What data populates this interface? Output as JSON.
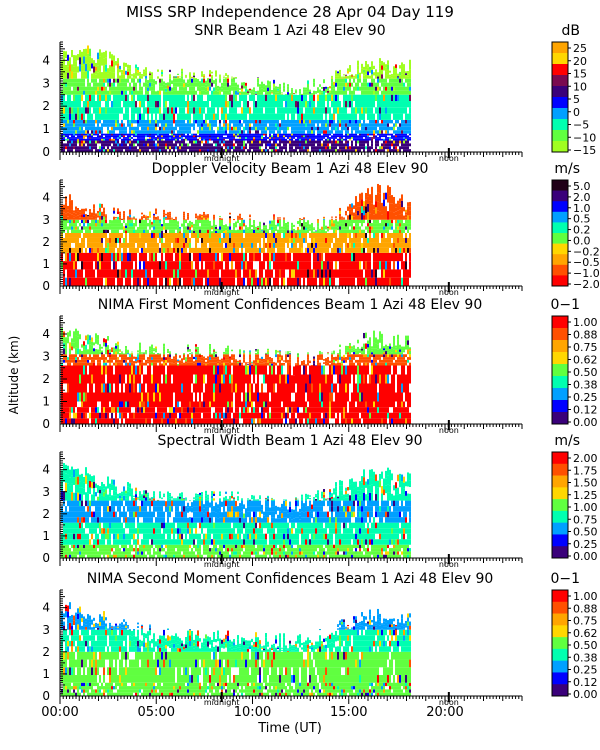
{
  "figure": {
    "title": "MISS SRP Independence  28 Apr 04 Day 119",
    "xlabel": "Time (UT)",
    "ylabel": "Altitude (km)",
    "x_ticks": [
      "00:00",
      "05:00",
      "10:00",
      "15:00",
      "20:00"
    ],
    "midnight_label": "midnight",
    "noon_label": "noon"
  },
  "chart_data": [
    {
      "type": "heatmap",
      "title": "SNR Beam 1 Azi  48 Elev 90",
      "unit": "dB",
      "xlim": [
        0,
        24
      ],
      "ylim": [
        0,
        4.8
      ],
      "y_ticks": [
        0,
        1,
        2,
        3,
        4
      ],
      "colorbar_labels": [
        "25",
        "20",
        "15",
        "10",
        "5",
        "0",
        "−5",
        "−10",
        "−15"
      ],
      "colorbar_colors": [
        "#ffa500",
        "#ffd700",
        "#ff0000",
        "#7a0a50",
        "#3a007a",
        "#0000ff",
        "#00a0ff",
        "#00ffb0",
        "#60ff40",
        "#a0ff20"
      ],
      "data_end_hour": 18.2,
      "top_km": [
        4.3,
        4.4,
        4.2,
        3.9,
        3.5,
        3.4,
        3.3,
        3.4,
        3.3,
        3.0,
        3.0,
        2.9,
        2.8,
        2.8,
        3.2,
        3.6,
        3.8,
        3.8,
        3.7
      ],
      "bands": [
        {
          "max_km": 0.5,
          "color": "#3a007a"
        },
        {
          "max_km": 0.8,
          "color": "#0000ff"
        },
        {
          "max_km": 1.4,
          "color": "#00a0ff"
        },
        {
          "max_km": 2.5,
          "color": "#00ffb0"
        },
        {
          "max_km": 3.2,
          "color": "#60ff40"
        },
        {
          "max_km": 9,
          "color": "#a0ff20"
        }
      ]
    },
    {
      "type": "heatmap",
      "title": "Doppler Velocity Beam 1 Azi  48 Elev 90",
      "unit": "m/s",
      "xlim": [
        0,
        24
      ],
      "ylim": [
        0,
        4.8
      ],
      "y_ticks": [
        0,
        1,
        2,
        3,
        4
      ],
      "colorbar_labels": [
        "5.0",
        "2.0",
        "1.0",
        "0.5",
        "0.2",
        "0.0",
        "−0.2",
        "−0.5",
        "−1.0",
        "−2.0"
      ],
      "colorbar_colors": [
        "#200018",
        "#3a007a",
        "#0000ff",
        "#00a0ff",
        "#00ffb0",
        "#60ff40",
        "#ffd700",
        "#ffa500",
        "#ff5000",
        "#ff0000"
      ],
      "data_end_hour": 18.2,
      "top_km": [
        4.0,
        3.6,
        3.4,
        3.2,
        3.1,
        3.2,
        3.0,
        3.1,
        3.0,
        3.0,
        2.9,
        2.9,
        2.8,
        2.8,
        3.0,
        3.6,
        4.2,
        4.4,
        3.6
      ],
      "bands": [
        {
          "max_km": 1.5,
          "color": "#ff0000"
        },
        {
          "max_km": 2.4,
          "color": "#ffa500"
        },
        {
          "max_km": 3.0,
          "color": "#60ff40"
        },
        {
          "max_km": 9,
          "color": "#ff5000"
        }
      ]
    },
    {
      "type": "heatmap",
      "title": "NIMA First Moment Confidences Beam 1 Azi  48 Elev 90",
      "unit": "0−1",
      "xlim": [
        0,
        24
      ],
      "ylim": [
        0,
        4.8
      ],
      "y_ticks": [
        0,
        1,
        2,
        3,
        4
      ],
      "colorbar_labels": [
        "1.00",
        "0.88",
        "0.75",
        "0.62",
        "0.50",
        "0.38",
        "0.25",
        "0.12",
        "0.00"
      ],
      "colorbar_colors": [
        "#ff0000",
        "#ff5000",
        "#ffa500",
        "#ffd700",
        "#60ff40",
        "#00ffb0",
        "#00a0ff",
        "#0000ff",
        "#3a007a"
      ],
      "data_end_hour": 18.2,
      "top_km": [
        4.2,
        4.0,
        3.7,
        3.4,
        3.3,
        3.3,
        3.2,
        3.3,
        3.2,
        3.1,
        3.0,
        3.0,
        2.9,
        2.9,
        3.1,
        3.5,
        3.8,
        3.8,
        3.6
      ],
      "bands": [
        {
          "max_km": 1.0,
          "color": "#ff0000"
        },
        {
          "max_km": 2.6,
          "color": "#ff0000"
        },
        {
          "max_km": 3.1,
          "color": "#ff5000"
        },
        {
          "max_km": 9,
          "color": "#60ff40"
        }
      ]
    },
    {
      "type": "heatmap",
      "title": "Spectral Width Beam 1 Azi  48 Elev 90",
      "unit": "m/s",
      "xlim": [
        0,
        24
      ],
      "ylim": [
        0,
        4.8
      ],
      "y_ticks": [
        0,
        1,
        2,
        3,
        4
      ],
      "colorbar_labels": [
        "2.00",
        "1.75",
        "1.50",
        "1.25",
        "1.00",
        "0.75",
        "0.50",
        "0.25",
        "0.00"
      ],
      "colorbar_colors": [
        "#ff0000",
        "#ff5000",
        "#ffa500",
        "#ffd700",
        "#60ff40",
        "#00ffb0",
        "#00a0ff",
        "#0000ff",
        "#3a007a"
      ],
      "data_end_hour": 18.2,
      "top_km": [
        4.4,
        4.1,
        3.6,
        3.2,
        3.0,
        2.9,
        2.8,
        2.8,
        2.7,
        2.7,
        2.6,
        2.6,
        2.5,
        2.6,
        3.0,
        3.4,
        3.8,
        3.9,
        3.6
      ],
      "bands": [
        {
          "max_km": 0.6,
          "color": "#60ff40"
        },
        {
          "max_km": 1.6,
          "color": "#00ffb0"
        },
        {
          "max_km": 2.6,
          "color": "#00a0ff"
        },
        {
          "max_km": 9,
          "color": "#00ffb0"
        }
      ]
    },
    {
      "type": "heatmap",
      "title": "NIMA Second Moment Confidences Beam 1 Azi  48 Elev 90",
      "unit": "0−1",
      "xlim": [
        0,
        24
      ],
      "ylim": [
        0,
        4.8
      ],
      "y_ticks": [
        0,
        1,
        2,
        3,
        4
      ],
      "colorbar_labels": [
        "1.00",
        "0.88",
        "0.75",
        "0.62",
        "0.50",
        "0.38",
        "0.25",
        "0.12",
        "0.00"
      ],
      "colorbar_colors": [
        "#ff0000",
        "#ff5000",
        "#ffa500",
        "#ffd700",
        "#60ff40",
        "#00ffb0",
        "#00a0ff",
        "#0000ff",
        "#3a007a"
      ],
      "data_end_hour": 18.2,
      "top_km": [
        4.0,
        3.8,
        3.6,
        3.2,
        3.0,
        2.9,
        2.8,
        2.8,
        2.7,
        2.6,
        2.6,
        2.5,
        2.5,
        2.6,
        2.9,
        3.3,
        3.6,
        3.6,
        3.4
      ],
      "bands": [
        {
          "max_km": 0.6,
          "color": "#60ff40"
        },
        {
          "max_km": 2.0,
          "color": "#60ff40"
        },
        {
          "max_km": 3.0,
          "color": "#00ffb0"
        },
        {
          "max_km": 9,
          "color": "#00a0ff"
        }
      ]
    }
  ]
}
